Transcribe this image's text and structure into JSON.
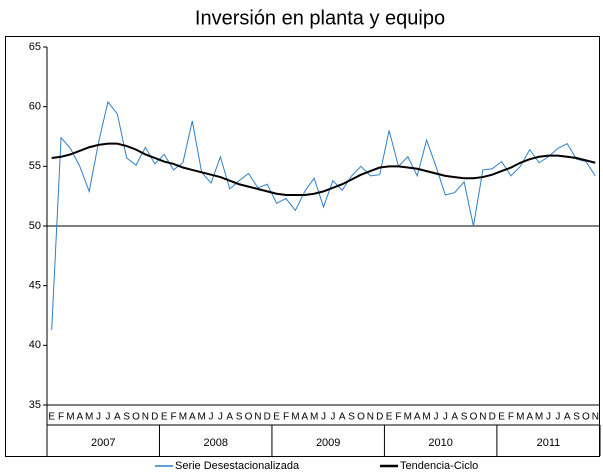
{
  "chart_data": {
    "type": "line",
    "title": "Inversión en planta y equipo",
    "categories": [
      "E",
      "F",
      "M",
      "A",
      "M",
      "J",
      "J",
      "A",
      "S",
      "O",
      "N",
      "D",
      "E",
      "F",
      "M",
      "A",
      "M",
      "J",
      "J",
      "A",
      "S",
      "O",
      "N",
      "D",
      "E",
      "F",
      "M",
      "A",
      "M",
      "J",
      "J",
      "A",
      "S",
      "O",
      "N",
      "D",
      "E",
      "F",
      "M",
      "A",
      "M",
      "J",
      "J",
      "A",
      "S",
      "O",
      "N",
      "D",
      "E",
      "F",
      "M",
      "A",
      "M",
      "J",
      "J",
      "A",
      "S",
      "O",
      "N"
    ],
    "years": [
      "2007",
      "2008",
      "2009",
      "2010",
      "2011"
    ],
    "series": [
      {
        "name": "Serie Desestacionalizada",
        "color": "#2f7fc6",
        "width": 1,
        "values": [
          41.3,
          57.4,
          56.5,
          55.0,
          52.9,
          57.0,
          60.4,
          59.4,
          55.7,
          55.1,
          56.6,
          55.2,
          56.0,
          54.7,
          55.3,
          58.8,
          54.5,
          53.6,
          55.8,
          53.1,
          53.8,
          54.4,
          53.2,
          53.5,
          51.9,
          52.3,
          51.3,
          52.9,
          54.0,
          51.6,
          53.8,
          53.0,
          54.2,
          55.0,
          54.2,
          54.3,
          58.0,
          55.0,
          55.8,
          54.2,
          57.2,
          55.0,
          52.6,
          52.8,
          53.7,
          50.0,
          54.7,
          54.8,
          55.4,
          54.2,
          55.0,
          56.4,
          55.3,
          55.8,
          56.5,
          56.9,
          55.6,
          55.4,
          54.2
        ]
      },
      {
        "name": "Tendencia-Ciclo",
        "color": "#000000",
        "width": 2,
        "values": [
          55.7,
          55.8,
          56.0,
          56.3,
          56.6,
          56.8,
          56.9,
          56.9,
          56.7,
          56.4,
          56.0,
          55.7,
          55.4,
          55.2,
          54.9,
          54.7,
          54.5,
          54.3,
          54.1,
          53.8,
          53.5,
          53.3,
          53.1,
          52.9,
          52.7,
          52.6,
          52.6,
          52.6,
          52.7,
          52.9,
          53.2,
          53.5,
          53.9,
          54.3,
          54.6,
          54.9,
          55.0,
          55.0,
          54.9,
          54.8,
          54.6,
          54.4,
          54.2,
          54.1,
          54.0,
          54.0,
          54.1,
          54.3,
          54.6,
          54.9,
          55.3,
          55.6,
          55.8,
          55.9,
          55.9,
          55.8,
          55.7,
          55.5,
          55.3
        ]
      }
    ],
    "ylim": [
      35,
      65
    ],
    "yticks": [
      35,
      40,
      45,
      50,
      55,
      60,
      65
    ],
    "axis_cross": 50,
    "grid": false,
    "legend": "bottom"
  }
}
